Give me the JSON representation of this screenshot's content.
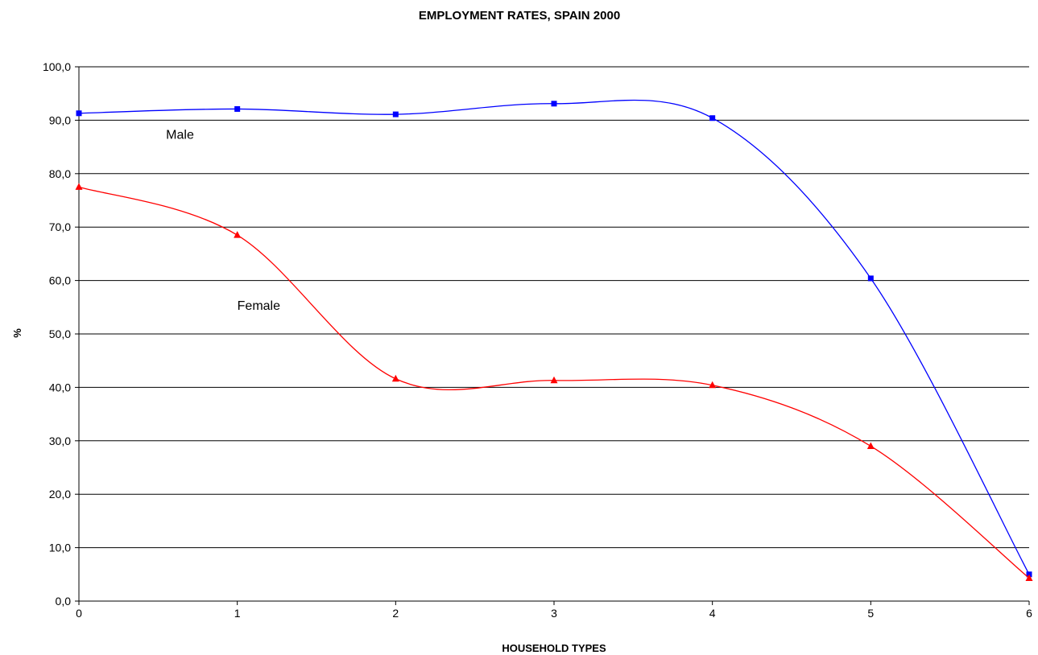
{
  "chart_data": {
    "type": "line",
    "title": "EMPLOYMENT RATES, SPAIN 2000",
    "xlabel": "HOUSEHOLD TYPES",
    "ylabel": "%",
    "x": [
      0,
      1,
      2,
      3,
      4,
      5,
      6
    ],
    "xlim": [
      0,
      6
    ],
    "ylim": [
      0,
      100
    ],
    "y_ticks": [
      "0,0",
      "10,0",
      "20,0",
      "30,0",
      "40,0",
      "50,0",
      "60,0",
      "70,0",
      "80,0",
      "90,0",
      "100,0"
    ],
    "x_ticks": [
      "0",
      "1",
      "2",
      "3",
      "4",
      "5",
      "6"
    ],
    "grid": true,
    "smooth": true,
    "series": [
      {
        "name": "Male",
        "color": "#0000ff",
        "marker": "square",
        "values": [
          91.3,
          92.1,
          91.1,
          93.1,
          90.4,
          60.4,
          5.0
        ]
      },
      {
        "name": "Female",
        "color": "#ff0000",
        "marker": "triangle",
        "values": [
          77.5,
          68.5,
          41.6,
          41.3,
          40.4,
          29.0,
          4.3
        ]
      }
    ],
    "annotations": [
      {
        "text": "Male",
        "series": 0,
        "x": 0.55,
        "y": 86.5
      },
      {
        "text": "Female",
        "series": 1,
        "x": 1.0,
        "y": 54.5
      }
    ]
  }
}
